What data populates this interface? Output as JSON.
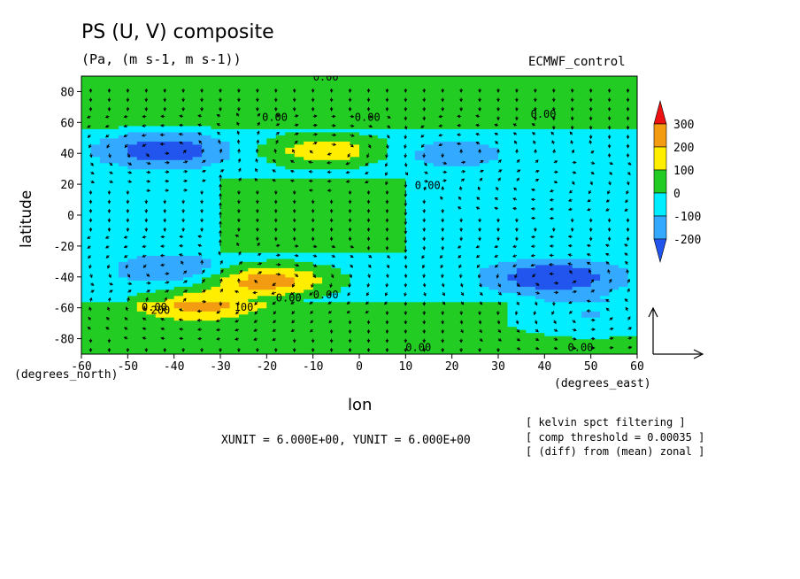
{
  "chart_data": {
    "type": "heatmap",
    "title": "PS (U, V) composite",
    "subtitle": "(Pa, (m s-1, m s-1))",
    "run_label": "ECMWF_control",
    "xlabel": "lon",
    "ylabel": "latitude",
    "x_unit_label": "(degrees_east)",
    "y_unit_label": "(degrees_north)",
    "xlim": [
      -60,
      60
    ],
    "ylim": [
      -90,
      90
    ],
    "x_ticks": [
      "-60",
      "-50",
      "-40",
      "-30",
      "-20",
      "-10",
      "0",
      "10",
      "20",
      "30",
      "40",
      "50",
      "60"
    ],
    "y_ticks": [
      "80",
      "60",
      "40",
      "20",
      "0",
      "-20",
      "-40",
      "-60",
      "-80"
    ],
    "colorbar": {
      "levels": [
        "300",
        "200",
        "100",
        "0",
        "-100",
        "-200"
      ],
      "colors": [
        "#ee1111",
        "#f39c12",
        "#ffee00",
        "#22cc22",
        "#00eeff",
        "#33aaff",
        "#2255ee"
      ]
    },
    "contour_labels": [
      "0.00",
      "0.00",
      "0.00",
      "0.00",
      "0.00",
      "0.00",
      "0.00",
      "100",
      "200",
      "0.00",
      "0.00",
      "0.00"
    ],
    "anomalies": [
      {
        "lon": -42,
        "lat": 42,
        "value": -250
      },
      {
        "lon": -7,
        "lat": 42,
        "value": 230
      },
      {
        "lon": -20,
        "lat": -42,
        "value": 310
      },
      {
        "lon": -35,
        "lat": -58,
        "value": 220
      },
      {
        "lon": 42,
        "lat": -40,
        "value": -270
      },
      {
        "lon": -40,
        "lat": -35,
        "value": -150
      },
      {
        "lon": 50,
        "lat": -65,
        "value": -120
      },
      {
        "lon": 20,
        "lat": 40,
        "value": -110
      },
      {
        "lon": 40,
        "lat": 20,
        "value": 40
      }
    ],
    "vector_units": "XUNIT = 6.000E+00, YUNIT = 6.000E+00",
    "notes": [
      "[ kelvin spct filtering ]",
      "[ comp threshold = 0.00035 ]",
      "[ (diff) from (mean) zonal ]"
    ]
  }
}
